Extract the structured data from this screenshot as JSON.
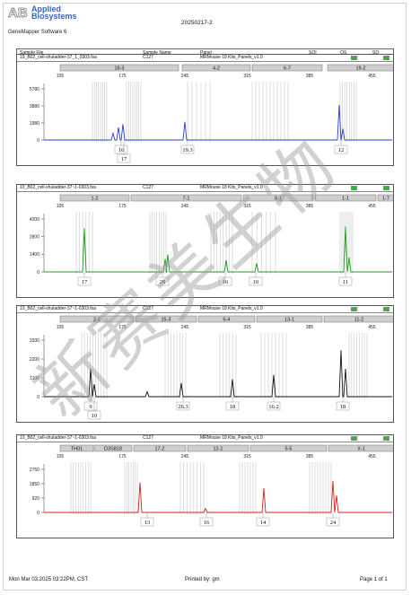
{
  "header": {
    "logo_line1": "Applied",
    "logo_line2": "Biosystems",
    "app_name": "GeneMapper Software 6",
    "run_date": "20250217-2"
  },
  "columns": [
    "Sample File",
    "Sample Name",
    "Panel",
    "SQI",
    "OS",
    "SQ"
  ],
  "panels": [
    {
      "sample_file": "19_B02_cell-shuladder-37_1_0303.fsa",
      "sample_name": "C127",
      "panel": "MRMouse 18 Kits_Panels_v1.0",
      "dye_color": "#2a3ecf",
      "y_ticks": [
        "5780",
        "3880",
        "1980",
        "0"
      ],
      "markers": [
        "18-3",
        "4-2",
        "6-7",
        "19-2"
      ],
      "allele_labels": [
        "16",
        "17",
        "19.3",
        "12"
      ]
    },
    {
      "sample_file": "10_B02_cell-shuladder-37~1-0303.fsa",
      "sample_name": "C127",
      "panel": "MRMouse 18 Kits_Panels_v1.0",
      "dye_color": "#1a9c1a",
      "y_ticks": [
        "4200",
        "2800",
        "1400",
        "0"
      ],
      "markers": [
        "1-2",
        "7-1",
        "8-1",
        "1-1",
        "1-7"
      ],
      "allele_labels": [
        "17",
        "28",
        "16",
        "10",
        "11"
      ]
    },
    {
      "sample_file": "10_B02_cell-shuladder-37~1-0303.fsa",
      "sample_name": "C127",
      "panel": "MRMouse 18 Kits_Panels_v1.0",
      "dye_color": "#111111",
      "y_ticks": [
        "3330",
        "2200",
        "1100",
        "0"
      ],
      "markers": [
        "2-1",
        "15-3",
        "6-4",
        "13-1",
        "11-2"
      ],
      "allele_labels": [
        "9",
        "10",
        "26.3",
        "18",
        "16.2",
        "18"
      ]
    },
    {
      "sample_file": "10_B02_cell-shuladder-37~1-0303.fsa",
      "sample_name": "C127",
      "panel": "MRMouse 18 Kits_Panels_v1.0",
      "dye_color": "#d42020",
      "y_ticks": [
        "2750",
        "1850",
        "920",
        "0"
      ],
      "markers": [
        "TH01",
        "D3S818",
        "17-2",
        "12-1",
        "5-5",
        "X-1"
      ],
      "allele_labels": [
        "13",
        "16",
        "14",
        "24"
      ]
    }
  ],
  "x_ticks": [
    "105",
    "175",
    "245",
    "315",
    "385",
    "455"
  ],
  "footer": {
    "date": "Mon Mar 03,2025 03:22PM, CST",
    "printed_by": "Printed by: gm",
    "page": "Page 1 of 1"
  },
  "watermark": "新赛美生物"
}
